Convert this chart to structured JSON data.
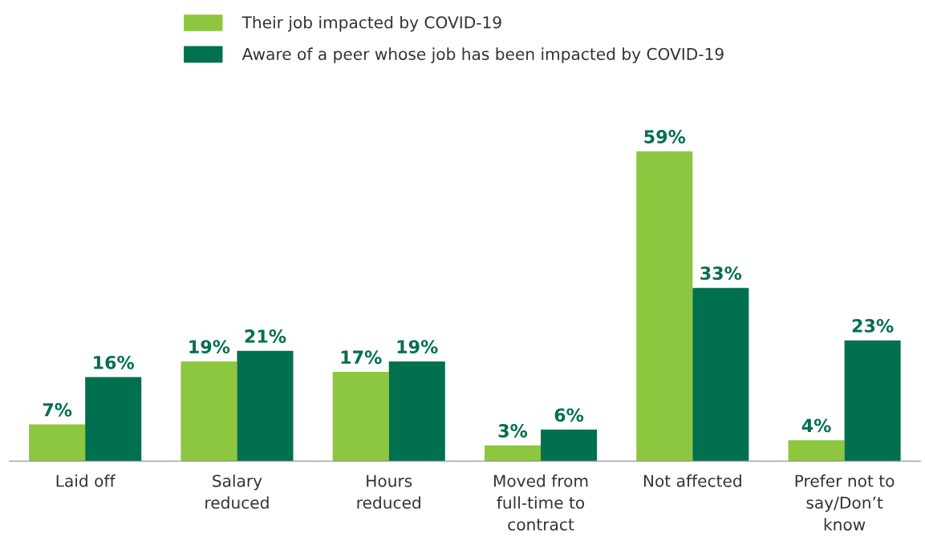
{
  "chart_data": {
    "type": "bar",
    "categories": [
      "Laid off",
      "Salary\nreduced",
      "Hours\nreduced",
      "Moved from\nfull-time to\ncontract",
      "Not affected",
      "Prefer not to\nsay/Don’t\nknow"
    ],
    "series": [
      {
        "name": "Their job impacted by COVID-19",
        "color": "#8dc63f",
        "values": [
          7,
          19,
          17,
          3,
          59,
          4
        ],
        "value_labels": [
          "7%",
          "19%",
          "17%",
          "3%",
          "59%",
          "4%"
        ]
      },
      {
        "name": "Aware of a peer whose job has been impacted by COVID-19",
        "color": "#00704f",
        "values": [
          16,
          21,
          19,
          6,
          33,
          23
        ],
        "value_labels": [
          "16%",
          "21%",
          "19%",
          "6%",
          "33%",
          "23%"
        ]
      }
    ],
    "legend": "top",
    "grid": false
  }
}
